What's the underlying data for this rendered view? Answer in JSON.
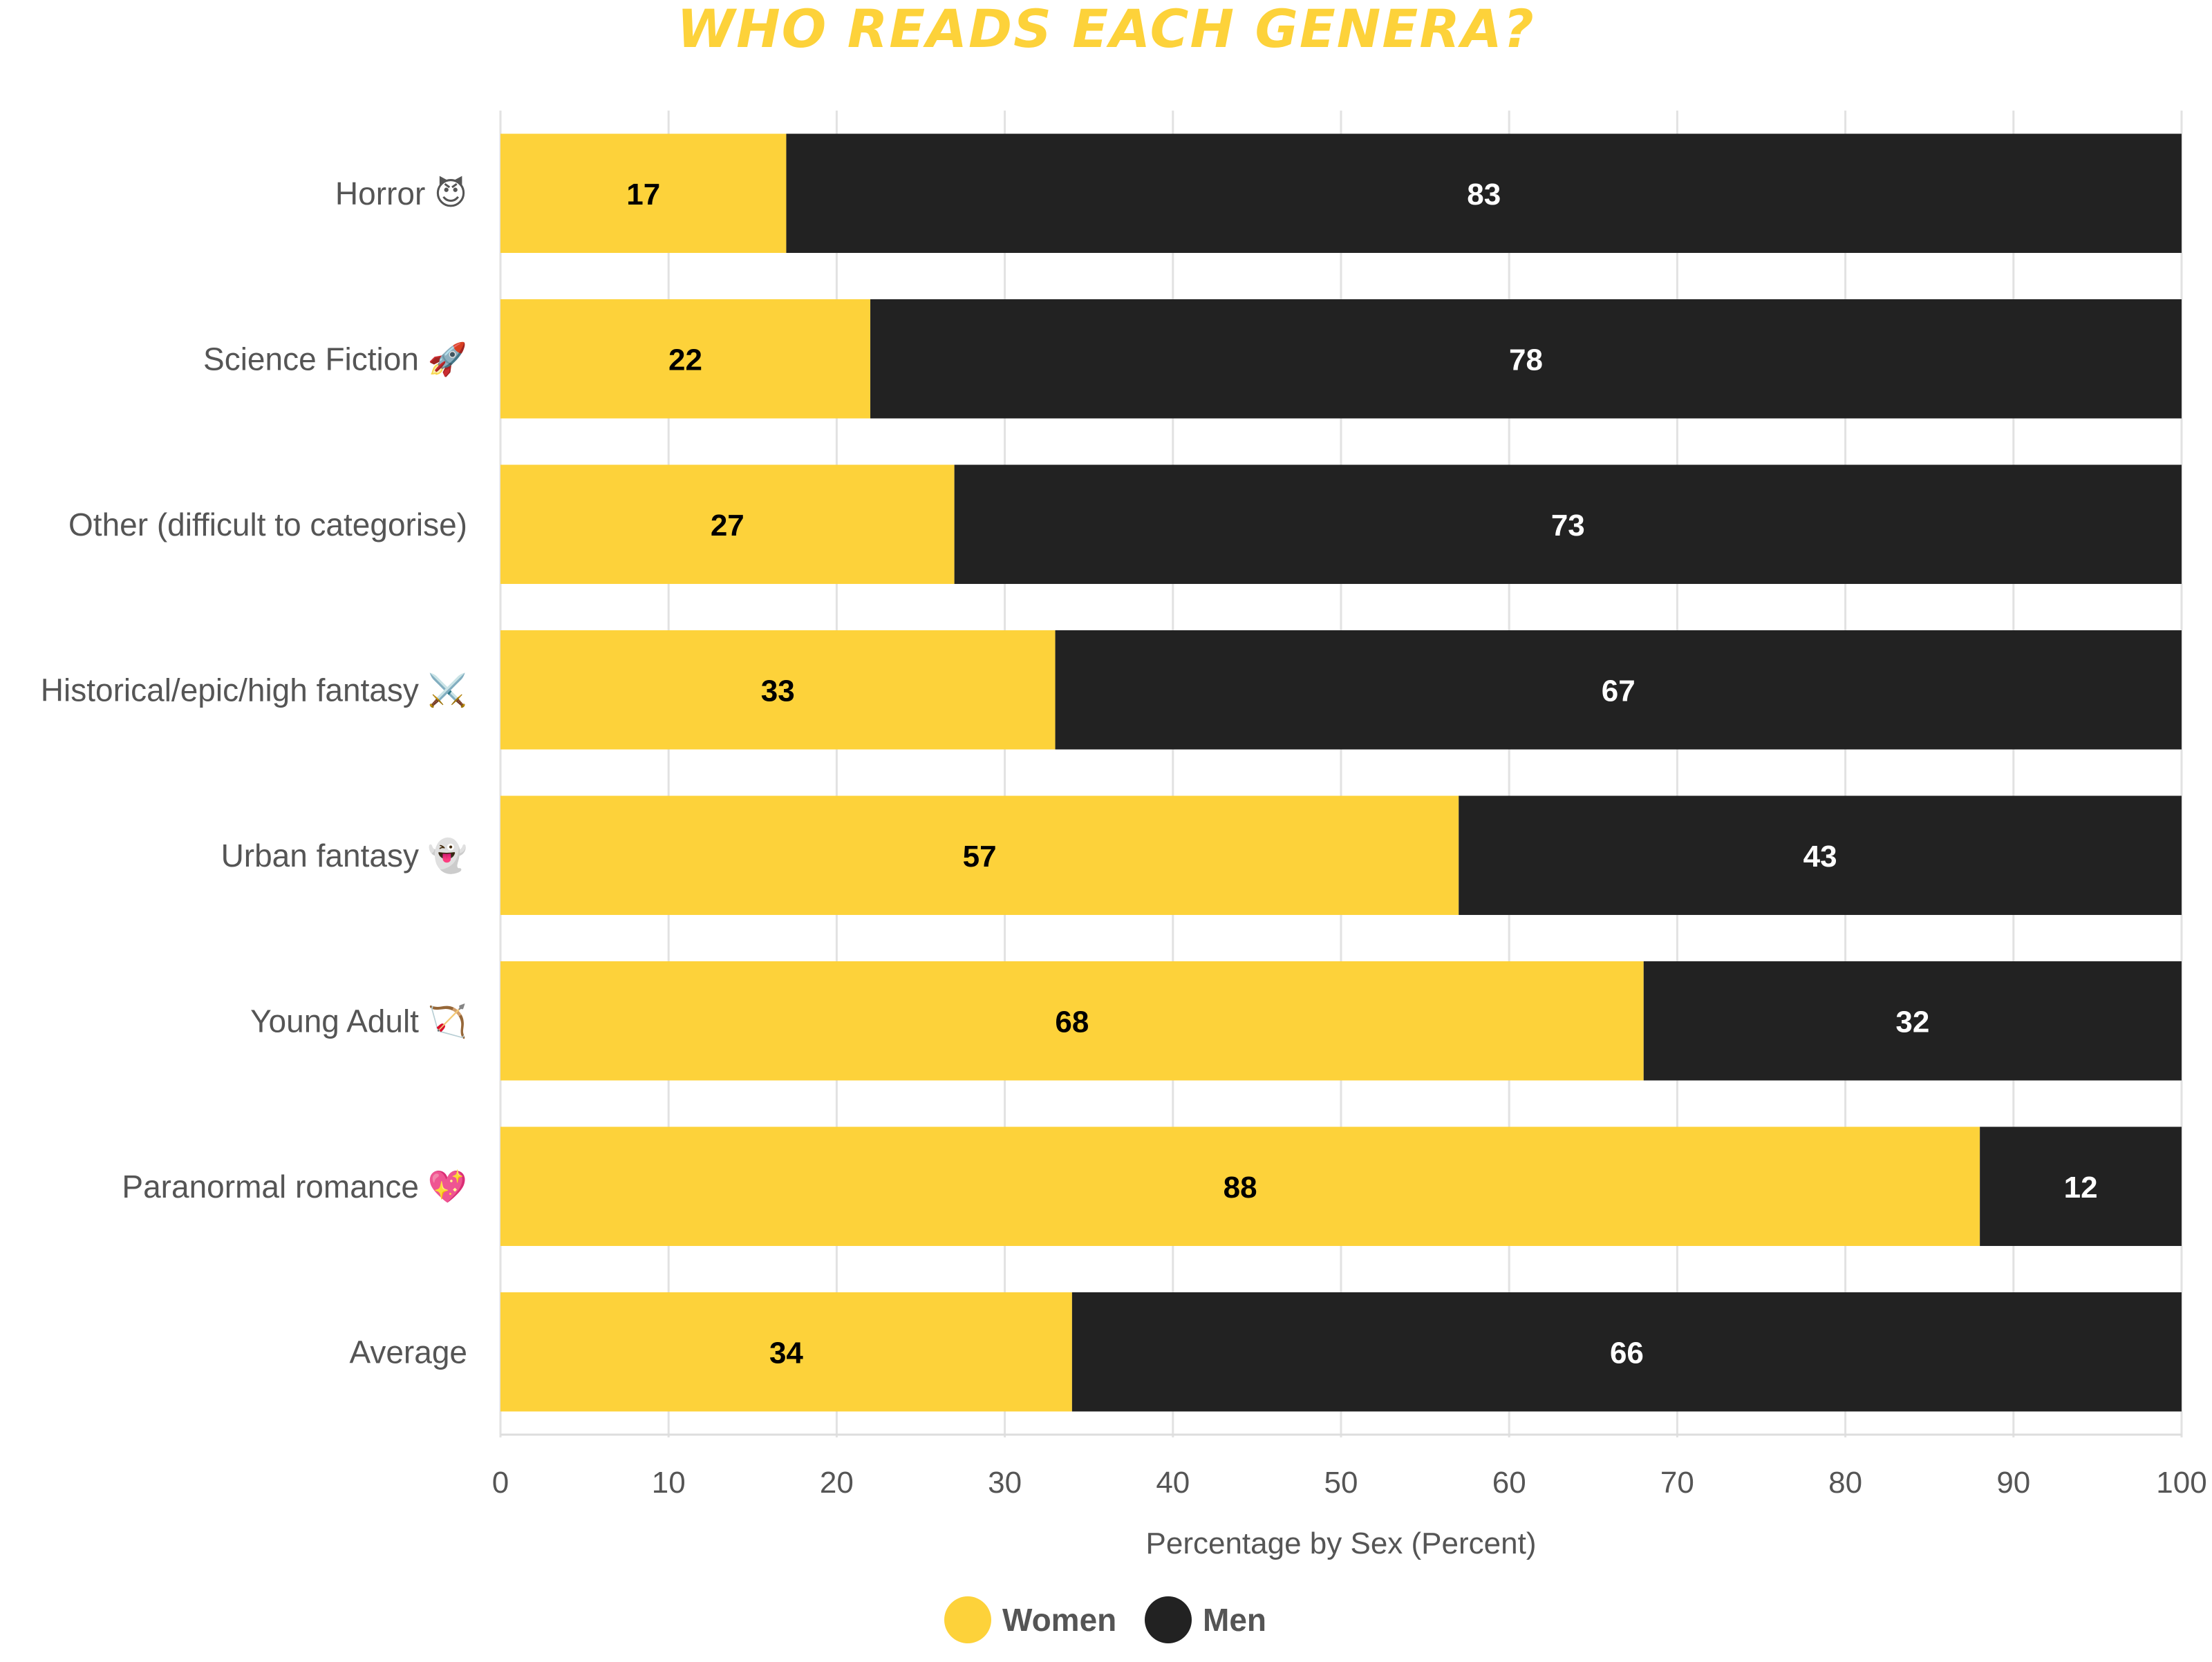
{
  "chart_data": {
    "type": "bar",
    "orientation": "horizontal",
    "stacked": true,
    "title": "WHO READS EACH GENERA?",
    "xlabel": "Percentage by Sex (Percent)",
    "ylabel": "",
    "xlim": [
      0,
      100
    ],
    "x_ticks": [
      0,
      10,
      20,
      30,
      40,
      50,
      60,
      70,
      80,
      90,
      100
    ],
    "grid": "vertical",
    "legend_position": "bottom-center",
    "categories": [
      "Horror 😈",
      "Science Fiction 🚀",
      "Other (difficult to categorise)",
      "Historical/epic/high fantasy ⚔️",
      "Urban fantasy 👻",
      "Young Adult 🏹",
      "Paranormal romance 💖",
      "Average"
    ],
    "series": [
      {
        "name": "Women",
        "color": "#fdd23a",
        "values": [
          17,
          22,
          27,
          33,
          57,
          68,
          88,
          34
        ]
      },
      {
        "name": "Men",
        "color": "#222222",
        "values": [
          83,
          78,
          73,
          67,
          43,
          32,
          12,
          66
        ]
      }
    ],
    "colors": {
      "title": "#fdd23a",
      "women_label": "#000000",
      "men_label": "#ffffff",
      "axis_text": "#555555",
      "grid": "#e2e2e2"
    }
  }
}
